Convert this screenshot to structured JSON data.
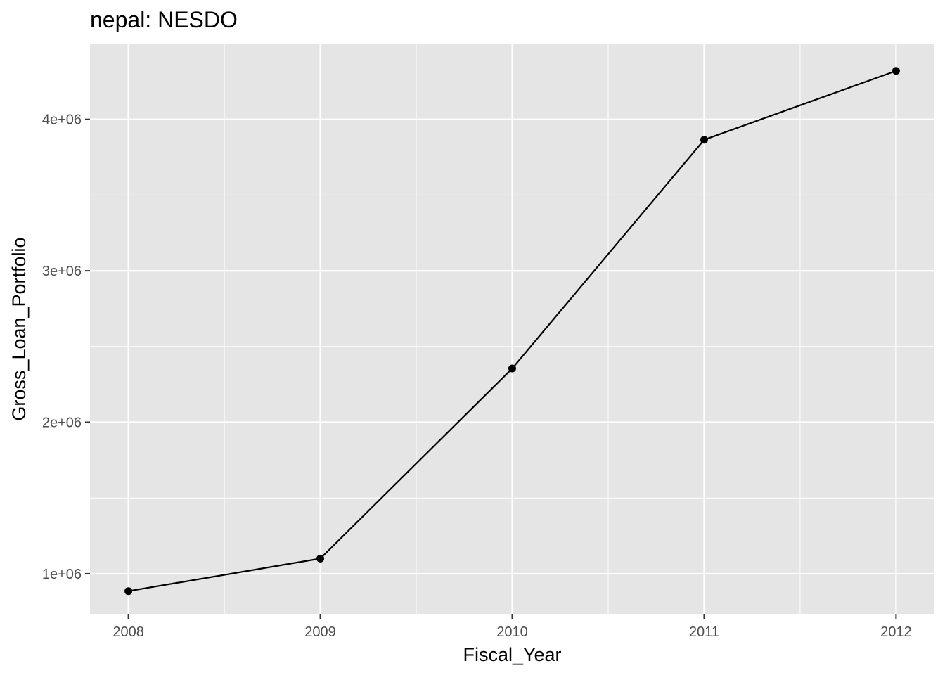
{
  "chart_data": {
    "type": "line",
    "title": "nepal:  NESDO",
    "xlabel": "Fiscal_Year",
    "ylabel": "Gross_Loan_Portfolio",
    "x": [
      2008,
      2009,
      2010,
      2011,
      2012
    ],
    "x_tick_labels": [
      "2008",
      "2009",
      "2010",
      "2011",
      "2012"
    ],
    "y_ticks": [
      1000000,
      2000000,
      3000000,
      4000000
    ],
    "y_tick_labels": [
      "1e+06",
      "2e+06",
      "3e+06",
      "4e+06"
    ],
    "xlim": [
      2007.8,
      2012.2
    ],
    "ylim": [
      735000,
      4500000
    ],
    "grid": true,
    "series": [
      {
        "values": [
          885000,
          1100000,
          2355000,
          3865000,
          4320000
        ]
      }
    ],
    "colors": {
      "panel": "#e5e5e5",
      "grid_major": "#ffffff",
      "line": "#000000",
      "tick_text": "#4d4d4d"
    }
  }
}
